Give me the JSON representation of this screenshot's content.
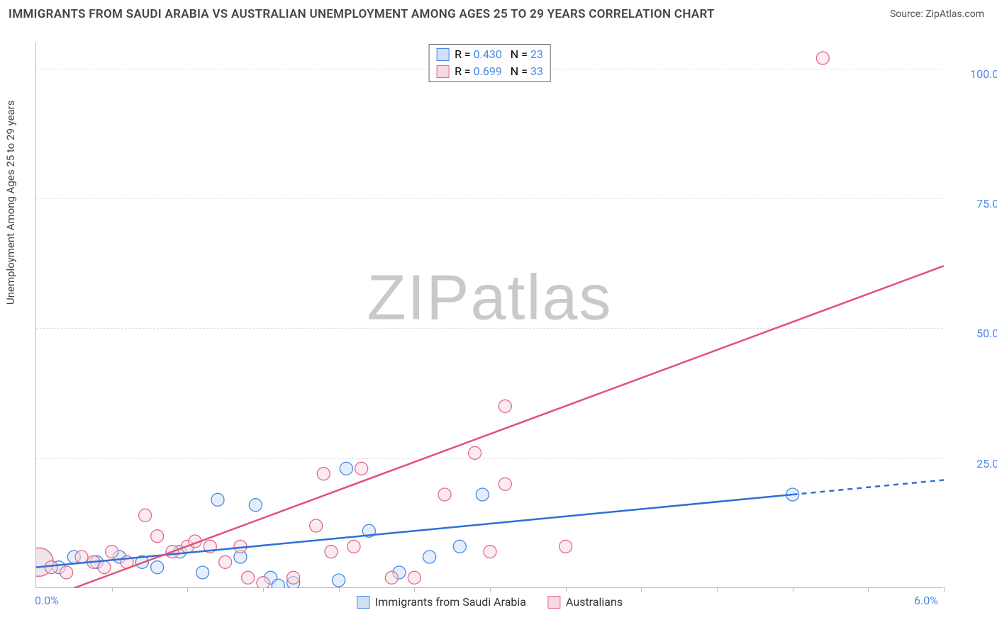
{
  "title": "IMMIGRANTS FROM SAUDI ARABIA VS AUSTRALIAN UNEMPLOYMENT AMONG AGES 25 TO 29 YEARS CORRELATION CHART",
  "source": "Source: ZipAtlas.com",
  "y_axis_label": "Unemployment Among Ages 25 to 29 years",
  "watermark_part1": "ZIP",
  "watermark_part2": "atlas",
  "chart": {
    "type": "scatter",
    "background_color": "#ffffff",
    "grid_color": "#e0e0e0",
    "axis_color": "#bbbbbb",
    "xlim": [
      0.0,
      6.0
    ],
    "ylim": [
      0.0,
      105.0
    ],
    "x_ticks": [
      0.0,
      6.0
    ],
    "x_tick_labels": [
      "0.0%",
      "6.0%"
    ],
    "x_minor_ticks": [
      0.5,
      1.0,
      1.5,
      2.0,
      2.5,
      3.0,
      3.5,
      4.0,
      4.5,
      5.0,
      5.5,
      6.0
    ],
    "y_ticks": [
      25.0,
      50.0,
      75.0,
      100.0
    ],
    "y_tick_labels": [
      "25.0%",
      "50.0%",
      "75.0%",
      "100.0%"
    ],
    "tick_label_color": "#4a86e8",
    "tick_label_fontsize": 16,
    "series": [
      {
        "id": "blue",
        "label": "Immigrants from Saudi Arabia",
        "R": "0.430",
        "N": "23",
        "marker_fill": "#cfe1f7",
        "marker_stroke": "#4a86e8",
        "marker_fill_opacity": 0.55,
        "marker_radius": 9,
        "line_color": "#2e6fd6",
        "line_width": 2.5,
        "trend": {
          "x1": 0.0,
          "y1": 4.0,
          "x2": 5.0,
          "y2": 18.0,
          "dash_x2": 6.0,
          "dash_y2": 20.8
        },
        "points": [
          {
            "x": 0.02,
            "y": 5,
            "r": 20
          },
          {
            "x": 0.15,
            "y": 4
          },
          {
            "x": 0.25,
            "y": 6
          },
          {
            "x": 0.4,
            "y": 5
          },
          {
            "x": 0.55,
            "y": 6
          },
          {
            "x": 0.7,
            "y": 5
          },
          {
            "x": 0.8,
            "y": 4
          },
          {
            "x": 0.95,
            "y": 7
          },
          {
            "x": 1.1,
            "y": 3
          },
          {
            "x": 1.2,
            "y": 17
          },
          {
            "x": 1.35,
            "y": 6
          },
          {
            "x": 1.45,
            "y": 16
          },
          {
            "x": 1.55,
            "y": 2
          },
          {
            "x": 1.6,
            "y": 0.5
          },
          {
            "x": 1.7,
            "y": 1
          },
          {
            "x": 2.0,
            "y": 1.5
          },
          {
            "x": 2.05,
            "y": 23
          },
          {
            "x": 2.2,
            "y": 11
          },
          {
            "x": 2.4,
            "y": 3
          },
          {
            "x": 2.6,
            "y": 6
          },
          {
            "x": 2.8,
            "y": 8
          },
          {
            "x": 2.95,
            "y": 18
          },
          {
            "x": 5.0,
            "y": 18
          }
        ]
      },
      {
        "id": "pink",
        "label": "Australians",
        "R": "0.699",
        "N": "33",
        "marker_fill": "#f8d8e0",
        "marker_stroke": "#e26a8c",
        "marker_fill_opacity": 0.55,
        "marker_radius": 9,
        "line_color": "#e3517a",
        "line_width": 2.5,
        "trend": {
          "x1": 0.25,
          "y1": 0.0,
          "x2": 6.0,
          "y2": 62.0
        },
        "points": [
          {
            "x": 0.02,
            "y": 5,
            "r": 20
          },
          {
            "x": 0.1,
            "y": 4
          },
          {
            "x": 0.2,
            "y": 3
          },
          {
            "x": 0.3,
            "y": 6
          },
          {
            "x": 0.38,
            "y": 5
          },
          {
            "x": 0.45,
            "y": 4
          },
          {
            "x": 0.5,
            "y": 7
          },
          {
            "x": 0.6,
            "y": 5
          },
          {
            "x": 0.72,
            "y": 14
          },
          {
            "x": 0.8,
            "y": 10
          },
          {
            "x": 0.9,
            "y": 7
          },
          {
            "x": 1.0,
            "y": 8
          },
          {
            "x": 1.05,
            "y": 9
          },
          {
            "x": 1.15,
            "y": 8
          },
          {
            "x": 1.25,
            "y": 5
          },
          {
            "x": 1.35,
            "y": 8
          },
          {
            "x": 1.4,
            "y": 2
          },
          {
            "x": 1.5,
            "y": 1
          },
          {
            "x": 1.7,
            "y": 2
          },
          {
            "x": 1.85,
            "y": 12
          },
          {
            "x": 1.9,
            "y": 22
          },
          {
            "x": 1.95,
            "y": 7
          },
          {
            "x": 2.1,
            "y": 8
          },
          {
            "x": 2.15,
            "y": 23
          },
          {
            "x": 2.35,
            "y": 2
          },
          {
            "x": 2.5,
            "y": 2
          },
          {
            "x": 2.7,
            "y": 18
          },
          {
            "x": 2.9,
            "y": 26
          },
          {
            "x": 3.0,
            "y": 7
          },
          {
            "x": 3.1,
            "y": 20
          },
          {
            "x": 3.1,
            "y": 35
          },
          {
            "x": 3.5,
            "y": 8
          },
          {
            "x": 5.2,
            "y": 102
          }
        ]
      }
    ],
    "legend_top": {
      "border_color": "#666666",
      "rows": [
        {
          "swatch_fill": "#cfe1f7",
          "swatch_stroke": "#4a86e8",
          "R_label": "R =",
          "R": "0.430",
          "N_label": "N =",
          "N": "23"
        },
        {
          "swatch_fill": "#f8d8e0",
          "swatch_stroke": "#e26a8c",
          "R_label": "R =",
          "R": "0.699",
          "N_label": "N =",
          "N": "33"
        }
      ]
    },
    "legend_bottom": {
      "items": [
        {
          "swatch_fill": "#cfe1f7",
          "swatch_stroke": "#4a86e8",
          "label": "Immigrants from Saudi Arabia"
        },
        {
          "swatch_fill": "#f8d8e0",
          "swatch_stroke": "#e26a8c",
          "label": "Australians"
        }
      ]
    }
  }
}
